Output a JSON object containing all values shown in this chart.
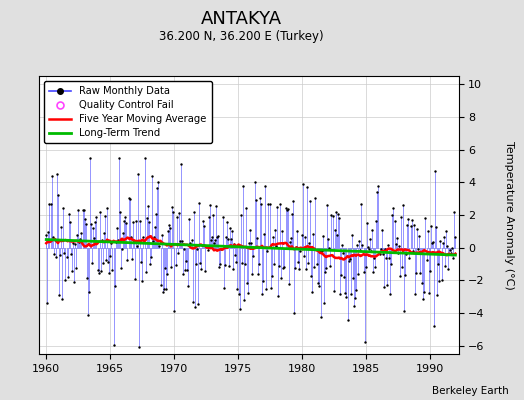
{
  "title": "ANTAKYA",
  "subtitle": "36.200 N, 36.200 E (Turkey)",
  "ylabel": "Temperature Anomaly (°C)",
  "credit": "Berkeley Earth",
  "xlim": [
    1959.5,
    1992.2
  ],
  "ylim": [
    -6.5,
    10.5
  ],
  "yticks": [
    -6,
    -4,
    -2,
    0,
    2,
    4,
    6,
    8,
    10
  ],
  "xticks": [
    1960,
    1965,
    1970,
    1975,
    1980,
    1985,
    1990
  ],
  "bg_color": "#e0e0e0",
  "plot_bg_color": "#ffffff",
  "line_color": "#4444ff",
  "marker_color": "#000000",
  "moving_avg_color": "#ff0000",
  "trend_color": "#00bb00",
  "qc_fail_color": "#ff44ff",
  "seed": 17
}
